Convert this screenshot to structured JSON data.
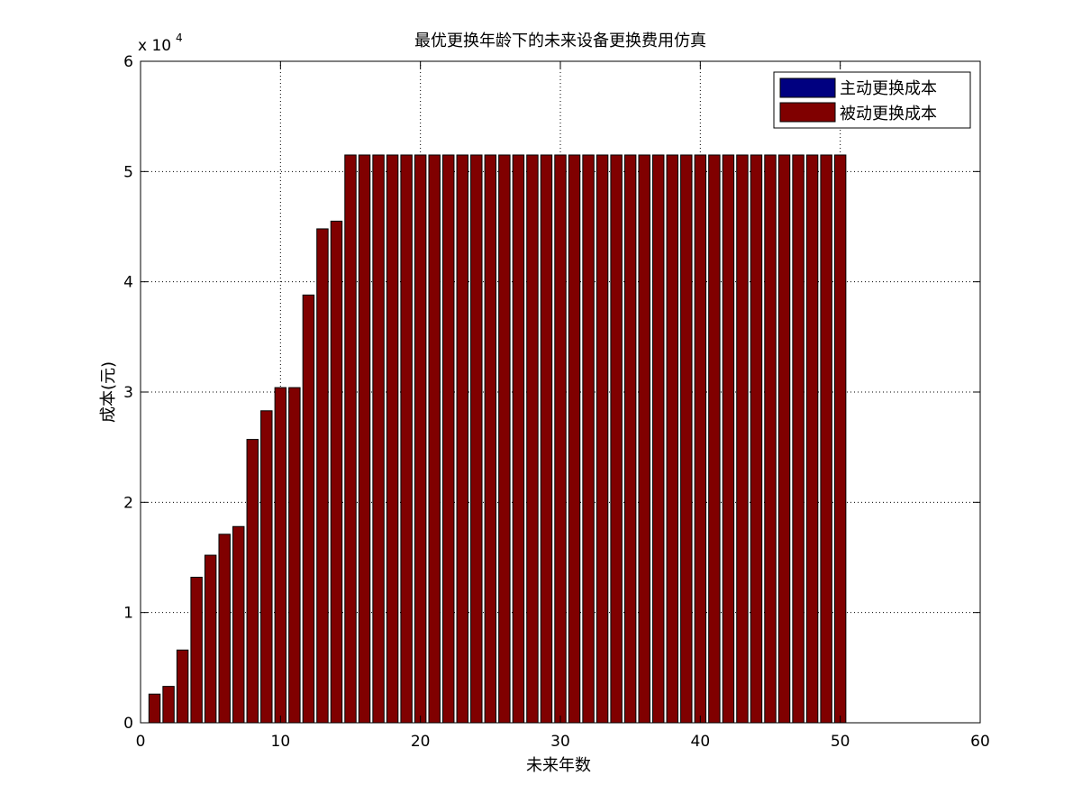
{
  "chart_data": {
    "type": "bar",
    "title": "最优更换年龄下的未来设备更换费用仿真",
    "xlabel": "未来年数",
    "ylabel": "成本(元)",
    "y_exponent_label": "x 10",
    "y_exponent_power": "4",
    "xlim": [
      0,
      60
    ],
    "ylim": [
      0,
      6
    ],
    "x_ticks": [
      0,
      10,
      20,
      30,
      40,
      50,
      60
    ],
    "y_ticks": [
      0,
      1,
      2,
      3,
      4,
      5,
      6
    ],
    "grid": true,
    "legend_position": "top-right",
    "stacked": true,
    "x": [
      1,
      2,
      3,
      4,
      5,
      6,
      7,
      8,
      9,
      10,
      11,
      12,
      13,
      14,
      15,
      16,
      17,
      18,
      19,
      20,
      21,
      22,
      23,
      24,
      25,
      26,
      27,
      28,
      29,
      30,
      31,
      32,
      33,
      34,
      35,
      36,
      37,
      38,
      39,
      40,
      41,
      42,
      43,
      44,
      45,
      46,
      47,
      48,
      49,
      50
    ],
    "series": [
      {
        "name": "主动更换成本",
        "color": "#000080",
        "values": [
          0,
          0,
          0,
          0,
          0,
          0,
          0,
          0,
          0,
          0,
          0,
          0,
          0,
          0,
          0,
          0,
          0,
          0,
          0,
          0,
          0,
          0,
          0,
          0,
          0,
          0,
          0,
          0,
          0,
          0,
          0,
          0,
          0,
          0,
          0,
          0,
          0,
          0,
          0,
          0,
          0,
          0,
          0,
          0,
          0,
          0,
          0,
          0,
          0,
          0
        ]
      },
      {
        "name": "被动更换成本",
        "color": "#800000",
        "values": [
          0.26,
          0.33,
          0.66,
          1.32,
          1.52,
          1.71,
          1.78,
          2.57,
          2.83,
          3.04,
          3.04,
          3.88,
          4.48,
          4.55,
          5.15,
          5.15,
          5.15,
          5.15,
          5.15,
          5.15,
          5.15,
          5.15,
          5.15,
          5.15,
          5.15,
          5.15,
          5.15,
          5.15,
          5.15,
          5.15,
          5.15,
          5.15,
          5.15,
          5.15,
          5.15,
          5.15,
          5.15,
          5.15,
          5.15,
          5.15,
          5.15,
          5.15,
          5.15,
          5.15,
          5.15,
          5.15,
          5.15,
          5.15,
          5.15,
          5.15
        ]
      }
    ]
  }
}
